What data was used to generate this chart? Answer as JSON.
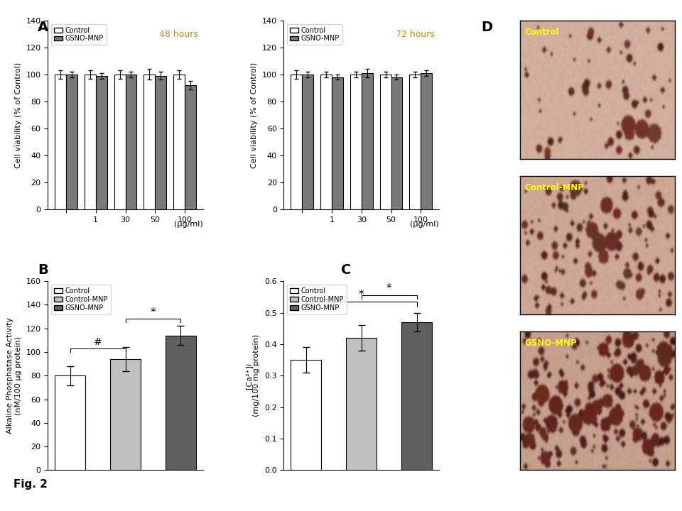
{
  "title": "Fig. 2",
  "panel_A_48h": {
    "x_positions": [
      0,
      1,
      2,
      3,
      4
    ],
    "x_labels": [
      "",
      "1",
      "30",
      "50",
      "100"
    ],
    "control_vals": [
      100,
      100,
      100,
      100,
      100
    ],
    "gsno_vals": [
      100,
      99,
      100,
      99,
      92
    ],
    "control_err": [
      3,
      3,
      3,
      4,
      3
    ],
    "gsno_err": [
      2,
      2,
      2,
      3,
      3
    ],
    "xlabel": "(μg/ml)",
    "ylabel": "Cell viability (% of Control)",
    "ylim": [
      0,
      140
    ],
    "yticks": [
      0,
      20,
      40,
      60,
      80,
      100,
      120,
      140
    ],
    "label_text": "48 hours",
    "bar_width": 0.38,
    "control_color": "white",
    "gsno_color": "#7a7a7a"
  },
  "panel_A_72h": {
    "x_positions": [
      0,
      1,
      2,
      3,
      4
    ],
    "x_labels": [
      "",
      "1",
      "30",
      "50",
      "100"
    ],
    "control_vals": [
      100,
      100,
      100,
      100,
      100
    ],
    "gsno_vals": [
      100,
      98,
      101,
      98,
      101
    ],
    "control_err": [
      3,
      2,
      2,
      2,
      2
    ],
    "gsno_err": [
      2,
      2,
      3,
      2,
      2
    ],
    "xlabel": "(μg/ml)",
    "ylabel": "Cell viability (% of Control)",
    "ylim": [
      0,
      140
    ],
    "yticks": [
      0,
      20,
      40,
      60,
      80,
      100,
      120,
      140
    ],
    "label_text": "72 hours",
    "bar_width": 0.38,
    "control_color": "white",
    "gsno_color": "#7a7a7a"
  },
  "panel_B": {
    "values": [
      80,
      94,
      114
    ],
    "errors": [
      8,
      10,
      8
    ],
    "ylabel_line1": "Alkaline Phosphatase Activity",
    "ylabel_line2": "(nM/100 μg protein)",
    "ylim": [
      0,
      160
    ],
    "yticks": [
      0,
      20,
      40,
      60,
      80,
      100,
      120,
      140,
      160
    ],
    "colors": [
      "white",
      "#c0c0c0",
      "#606060"
    ],
    "legend_labels": [
      "Control",
      "Control-MNP",
      "GSNO-MNP"
    ]
  },
  "panel_C": {
    "values": [
      0.35,
      0.42,
      0.47
    ],
    "errors": [
      0.04,
      0.04,
      0.03
    ],
    "ylabel_line1": "[Ca²⁺]i",
    "ylabel_line2": "(mg/100 mg protein)",
    "ylim": [
      0.0,
      0.6
    ],
    "yticks": [
      0.0,
      0.1,
      0.2,
      0.3,
      0.4,
      0.5,
      0.6
    ],
    "colors": [
      "white",
      "#c0c0c0",
      "#606060"
    ],
    "legend_labels": [
      "Control",
      "Control-MNP",
      "GSNO-MNP"
    ]
  },
  "panel_D_labels": [
    "Control",
    "Control-MNP",
    "GSNO-MNP"
  ],
  "background_color": "#ffffff",
  "bg_rgb": [
    210,
    175,
    158
  ],
  "spot_rgb_1": [
    115,
    52,
    42
  ],
  "spot_rgb_2": [
    108,
    48,
    38
  ],
  "spot_rgb_3": [
    100,
    40,
    32
  ]
}
